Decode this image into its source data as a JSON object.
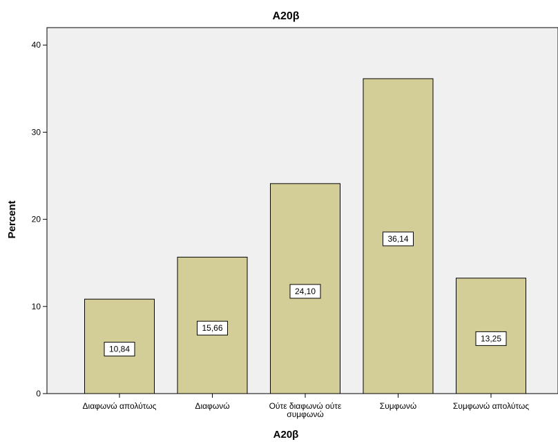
{
  "chart_data": {
    "type": "bar",
    "title": "A20β",
    "xlabel": "A20β",
    "ylabel": "Percent",
    "ylim": [
      0,
      42
    ],
    "yticks": [
      0,
      10,
      20,
      30,
      40
    ],
    "ytick_labels": [
      "0",
      "10",
      "20",
      "30",
      "40"
    ],
    "categories": [
      [
        "Διαφωνώ απολύτως"
      ],
      [
        "Διαφωνώ"
      ],
      [
        "Ούτε διαφωνώ ούτε",
        "συμφωνώ"
      ],
      [
        "Συμφωνώ"
      ],
      [
        "Συμφωνώ απολύτως"
      ]
    ],
    "values": [
      10.84,
      15.66,
      24.1,
      36.14,
      13.25
    ],
    "data_labels": [
      "10,84",
      "15,66",
      "24,10",
      "36,14",
      "13,25"
    ],
    "grid": false,
    "colors": {
      "background": "#ffffff",
      "plot_background": "#f0f0f0",
      "bar_fill": "#d3ce97",
      "bar_stroke": "#000000",
      "label_box_fill": "#ffffff",
      "axis": "#000000"
    }
  }
}
